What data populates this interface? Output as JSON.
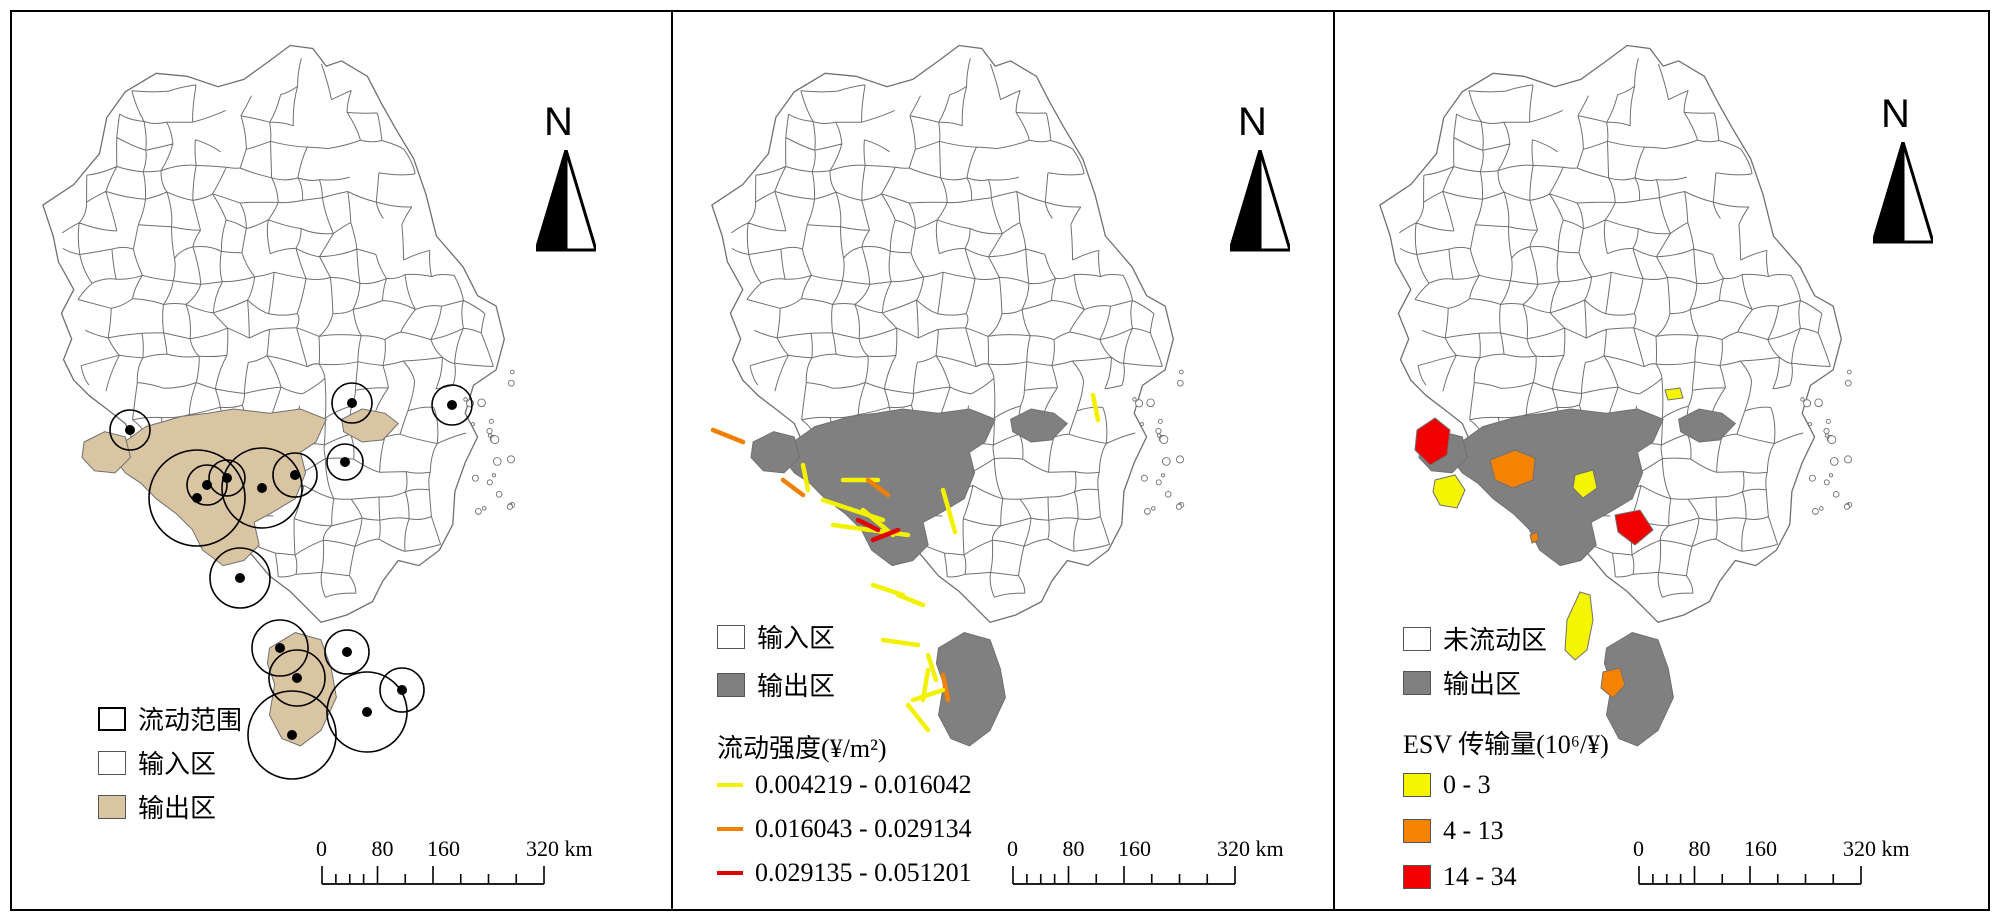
{
  "panels": [
    {
      "id": "a",
      "north": "N",
      "legend": [
        {
          "label": "流动范围",
          "fill": "#ffffff",
          "stroke": "#000000"
        },
        {
          "label": "输入区",
          "fill": "#ffffff",
          "stroke": "#777777"
        },
        {
          "label": "输出区",
          "fill": "#d9c5a2",
          "stroke": "#777777"
        }
      ],
      "scale": {
        "ticks": [
          "0",
          "80",
          "160",
          "320 km"
        ]
      }
    },
    {
      "id": "b",
      "north": "N",
      "legend": [
        {
          "label": "输入区",
          "fill": "#ffffff",
          "stroke": "#777777"
        },
        {
          "label": "输出区",
          "fill": "#808080",
          "stroke": "#777777"
        }
      ],
      "flow_title": "流动强度(¥/m²)",
      "flow_classes": [
        {
          "label": "0.004219 - 0.016042",
          "color": "#f2f200"
        },
        {
          "label": "0.016043 - 0.029134",
          "color": "#f08000"
        },
        {
          "label": "0.029135 - 0.051201",
          "color": "#e00000"
        }
      ],
      "scale": {
        "ticks": [
          "0",
          "80",
          "160",
          "320 km"
        ]
      }
    },
    {
      "id": "c",
      "north": "N",
      "legend": [
        {
          "label": "未流动区",
          "fill": "#ffffff",
          "stroke": "#777777"
        },
        {
          "label": "输出区",
          "fill": "#808080",
          "stroke": "#777777"
        }
      ],
      "esv_title": "ESV 传输量(10⁶/¥)",
      "esv_classes": [
        {
          "label": "0 - 3",
          "color": "#f5f500"
        },
        {
          "label": "4 - 13",
          "color": "#f58200"
        },
        {
          "label": "14 - 34",
          "color": "#f00000"
        }
      ],
      "scale": {
        "ticks": [
          "0",
          "80",
          "160",
          "320 km"
        ]
      }
    }
  ],
  "colors": {
    "border": "#707070",
    "output_tan": "#d9c5a2",
    "output_gray": "#808080"
  }
}
